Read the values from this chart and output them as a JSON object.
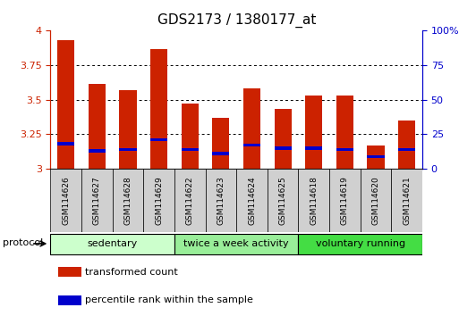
{
  "title": "GDS2173 / 1380177_at",
  "samples": [
    "GSM114626",
    "GSM114627",
    "GSM114628",
    "GSM114629",
    "GSM114622",
    "GSM114623",
    "GSM114624",
    "GSM114625",
    "GSM114618",
    "GSM114619",
    "GSM114620",
    "GSM114621"
  ],
  "transformed_counts": [
    3.93,
    3.61,
    3.57,
    3.86,
    3.47,
    3.37,
    3.58,
    3.43,
    3.53,
    3.53,
    3.17,
    3.35
  ],
  "percentile_values": [
    3.17,
    3.12,
    3.13,
    3.2,
    3.13,
    3.1,
    3.16,
    3.14,
    3.14,
    3.13,
    3.08,
    3.13
  ],
  "percentile_heights": [
    0.022,
    0.022,
    0.022,
    0.022,
    0.022,
    0.022,
    0.022,
    0.022,
    0.022,
    0.022,
    0.022,
    0.022
  ],
  "ylim": [
    3.0,
    4.0
  ],
  "yticks": [
    3.0,
    3.25,
    3.5,
    3.75,
    4.0
  ],
  "ytick_labels": [
    "3",
    "3.25",
    "3.5",
    "3.75",
    "4"
  ],
  "right_yticks": [
    0.0,
    0.25,
    0.5,
    0.75,
    1.0
  ],
  "right_ytick_labels": [
    "0",
    "25",
    "50",
    "75",
    "100%"
  ],
  "bar_color": "#cc2200",
  "percentile_color": "#0000cc",
  "groups": [
    {
      "label": "sedentary",
      "start": 0,
      "end": 4,
      "color": "#ccffcc"
    },
    {
      "label": "twice a week activity",
      "start": 4,
      "end": 8,
      "color": "#99ee99"
    },
    {
      "label": "voluntary running",
      "start": 8,
      "end": 12,
      "color": "#44dd44"
    }
  ],
  "protocol_label": "protocol",
  "legend_items": [
    {
      "label": "transformed count",
      "color": "#cc2200"
    },
    {
      "label": "percentile rank within the sample",
      "color": "#0000cc"
    }
  ],
  "tick_label_color_left": "#cc2200",
  "tick_label_color_right": "#0000cc",
  "bar_width": 0.55,
  "ybase": 3.0,
  "sample_box_color": "#d0d0d0"
}
